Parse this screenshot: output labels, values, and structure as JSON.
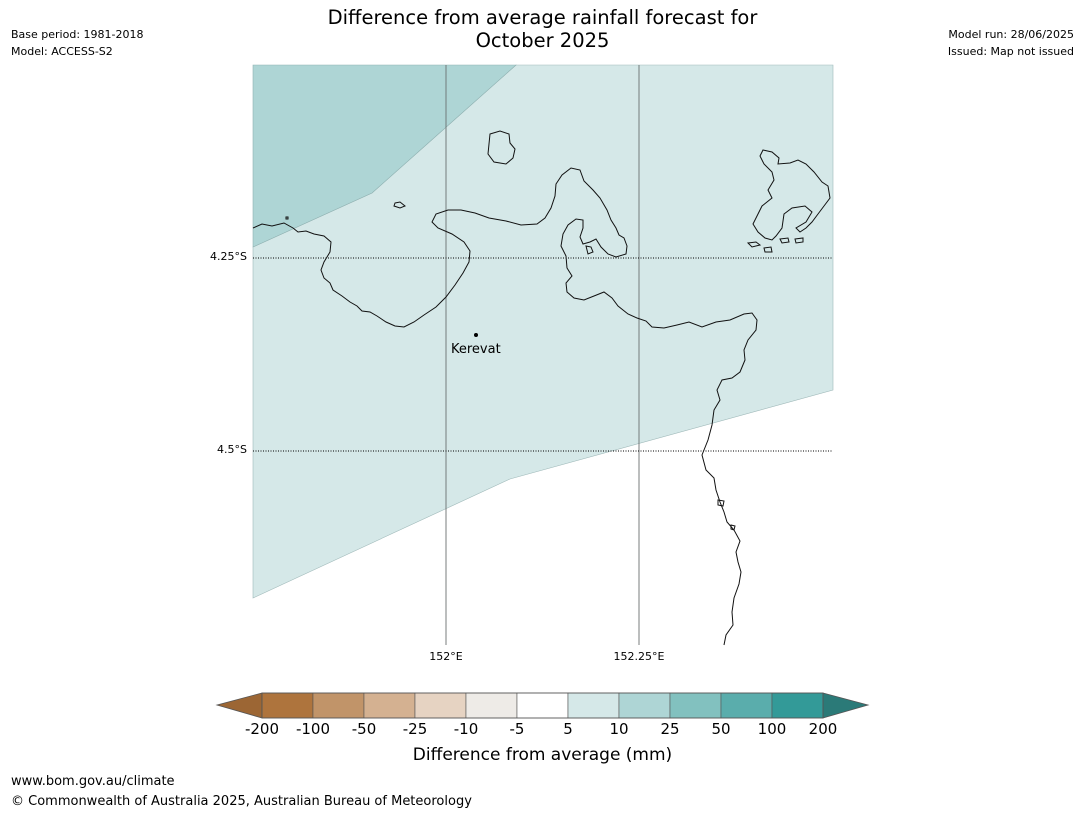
{
  "title_line1": "Difference from average rainfall forecast for",
  "title_line2": "October 2025",
  "meta_left": {
    "base_period": "Base period: 1981-2018",
    "model": "Model: ACCESS-S2"
  },
  "meta_right": {
    "model_run": "Model run: 28/06/2025",
    "issued": "Issued: Map not issued"
  },
  "map": {
    "lat_labels": [
      "4.25°S",
      "4.5°S"
    ],
    "lon_labels": [
      "152°E",
      "152.25°E"
    ],
    "place": {
      "name": "Kerevat",
      "lon": 152.04,
      "lat": -4.35
    },
    "extent": {
      "lon_min": 151.75,
      "lon_max": 152.5,
      "lat_min": -4.75,
      "lat_max": -4.0
    },
    "regions": [
      {
        "category": "10 to 25",
        "color": "#aed5d5"
      },
      {
        "category": "5 to 10",
        "color": "#d5e8e8"
      },
      {
        "category": "-5 to 5",
        "color": "#ffffff"
      }
    ]
  },
  "colorbar": {
    "label": "Difference from average (mm)",
    "ticks": [
      "-200",
      "-100",
      "-50",
      "-25",
      "-10",
      "-5",
      "5",
      "10",
      "25",
      "50",
      "100",
      "200"
    ],
    "colors": [
      "#9c6634",
      "#ae743d",
      "#c19469",
      "#d4b191",
      "#e6d3c2",
      "#eeebe7",
      "#ffffff",
      "#d5e8e8",
      "#aed5d5",
      "#82c1bf",
      "#5aadac",
      "#339a98",
      "#2b7a78"
    ]
  },
  "footer": {
    "url": "www.bom.gov.au/climate",
    "copyright": "© Commonwealth of Australia 2025, Australian Bureau of Meteorology"
  }
}
